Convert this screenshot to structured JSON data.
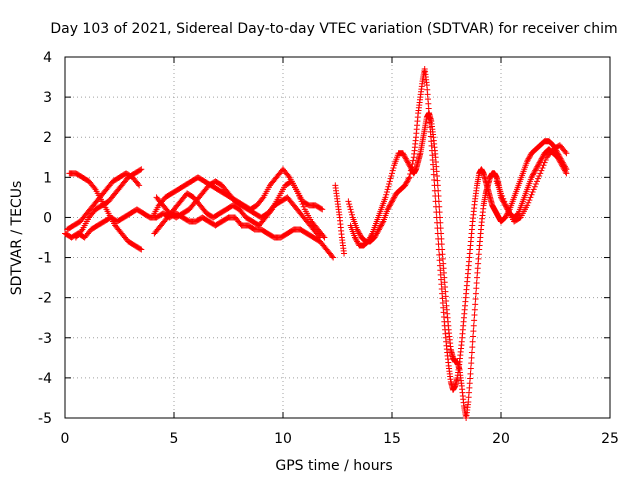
{
  "chart_data": {
    "type": "scatter",
    "title": "Day 103 of 2021, Sidereal Day-to-day VTEC variation (SDTVAR) for receiver chim",
    "xlabel": "GPS time / hours",
    "ylabel": "SDTVAR / TECUs",
    "xlim": [
      0,
      25
    ],
    "ylim": [
      -5,
      4
    ],
    "xticks": [
      "0",
      "5",
      "10",
      "15",
      "20",
      "25"
    ],
    "yticks": [
      "-5",
      "-4",
      "-3",
      "-2",
      "-1",
      "0",
      "1",
      "2",
      "3",
      "4"
    ],
    "grid": true,
    "marker": "+",
    "color": "#ff0000",
    "series": [
      {
        "x": [
          0.0,
          0.3,
          0.6,
          0.9,
          1.2,
          1.5,
          1.8,
          2.1,
          2.4,
          2.7,
          3.0,
          3.3,
          3.6,
          3.9,
          4.2,
          4.5,
          4.8,
          5.1,
          5.4,
          5.7,
          6.0,
          6.3,
          6.6,
          6.9,
          7.2,
          7.5,
          7.8,
          8.1,
          8.4,
          8.7,
          9.0,
          9.3,
          9.6,
          9.9,
          10.2,
          10.5,
          10.8,
          11.1,
          11.4,
          11.7,
          12.0,
          12.3
        ],
        "y": [
          -0.4,
          -0.5,
          -0.4,
          -0.5,
          -0.3,
          -0.2,
          -0.1,
          0.0,
          -0.1,
          0.0,
          0.1,
          0.2,
          0.1,
          0.0,
          0.0,
          0.1,
          0.0,
          0.1,
          0.0,
          -0.1,
          -0.1,
          0.0,
          -0.1,
          -0.2,
          -0.1,
          0.0,
          0.0,
          -0.2,
          -0.2,
          -0.3,
          -0.3,
          -0.4,
          -0.5,
          -0.5,
          -0.4,
          -0.3,
          -0.3,
          -0.4,
          -0.5,
          -0.6,
          -0.8,
          -1.0
        ]
      },
      {
        "x": [
          0.1,
          0.4,
          0.7,
          1.0,
          1.3,
          1.6,
          1.9,
          2.2,
          2.5,
          2.8,
          3.1,
          3.4
        ],
        "y": [
          -0.3,
          -0.2,
          -0.1,
          0.1,
          0.3,
          0.5,
          0.7,
          0.9,
          1.0,
          1.1,
          1.0,
          0.8
        ]
      },
      {
        "x": [
          0.2,
          0.5,
          0.8,
          1.1,
          1.4,
          1.7,
          2.0,
          2.3,
          2.6,
          2.9,
          3.2,
          3.5
        ],
        "y": [
          1.1,
          1.1,
          1.0,
          0.9,
          0.7,
          0.4,
          0.1,
          -0.2,
          -0.4,
          -0.6,
          -0.7,
          -0.8
        ]
      },
      {
        "x": [
          0.5,
          0.8,
          1.1,
          1.4,
          1.7,
          2.0,
          2.3,
          2.6,
          2.9,
          3.2,
          3.5
        ],
        "y": [
          -0.5,
          -0.3,
          0.0,
          0.2,
          0.3,
          0.4,
          0.6,
          0.8,
          1.0,
          1.1,
          1.2
        ]
      },
      {
        "x": [
          4.0,
          4.3,
          4.6,
          4.9,
          5.2,
          5.5,
          5.8,
          6.1,
          6.4,
          6.7,
          7.0,
          7.3,
          7.6,
          7.9,
          8.2,
          8.5,
          8.8,
          9.1,
          9.4,
          9.7,
          10.0,
          10.3,
          10.6,
          10.9,
          11.2,
          11.5,
          11.8
        ],
        "y": [
          0.0,
          0.3,
          0.5,
          0.6,
          0.7,
          0.8,
          0.9,
          1.0,
          0.9,
          0.8,
          0.7,
          0.6,
          0.5,
          0.4,
          0.3,
          0.2,
          0.3,
          0.5,
          0.8,
          1.0,
          1.2,
          1.0,
          0.7,
          0.4,
          0.3,
          0.3,
          0.2
        ]
      },
      {
        "x": [
          4.1,
          4.4,
          4.7,
          5.0,
          5.3,
          5.6,
          5.9,
          6.2,
          6.5,
          6.8,
          7.1,
          7.4,
          7.7,
          8.0,
          8.3,
          8.6,
          8.9,
          9.2,
          9.5,
          9.8,
          10.1,
          10.4,
          10.7,
          11.0,
          11.3,
          11.6,
          11.9
        ],
        "y": [
          -0.4,
          -0.2,
          0.0,
          0.2,
          0.4,
          0.6,
          0.5,
          0.3,
          0.1,
          0.0,
          0.1,
          0.2,
          0.3,
          0.2,
          0.0,
          -0.1,
          -0.2,
          0.0,
          0.2,
          0.5,
          0.8,
          0.9,
          0.6,
          0.2,
          -0.1,
          -0.3,
          -0.5
        ]
      },
      {
        "x": [
          4.2,
          4.5,
          4.8,
          5.1,
          5.4,
          5.7,
          6.0,
          6.3,
          6.6,
          6.9,
          7.2,
          7.5,
          7.8,
          8.1,
          8.4,
          8.7,
          9.0,
          9.3,
          9.6,
          9.9,
          10.2,
          10.5,
          10.8,
          11.1,
          11.4,
          11.7
        ],
        "y": [
          0.5,
          0.3,
          0.1,
          0.0,
          0.1,
          0.2,
          0.4,
          0.6,
          0.8,
          0.9,
          0.8,
          0.6,
          0.4,
          0.3,
          0.2,
          0.1,
          0.0,
          0.1,
          0.3,
          0.4,
          0.5,
          0.3,
          0.1,
          -0.1,
          -0.3,
          -0.5
        ]
      },
      {
        "x": [
          12.4,
          12.5,
          12.6,
          12.7,
          12.8
        ],
        "y": [
          0.8,
          0.4,
          0.0,
          -0.5,
          -0.9
        ]
      },
      {
        "x": [
          13.0,
          13.2,
          13.4,
          13.6,
          13.8,
          14.0,
          14.2,
          14.4,
          14.6,
          14.8,
          15.0,
          15.2,
          15.4,
          15.6,
          15.8,
          16.0,
          16.1,
          16.2,
          16.3,
          16.4,
          16.5,
          16.6,
          16.7,
          16.8,
          16.9,
          17.0,
          17.1,
          17.2,
          17.3,
          17.4,
          17.5,
          17.6,
          17.7,
          17.8,
          17.9,
          18.0,
          18.1,
          18.2,
          18.3,
          18.4,
          18.5,
          18.6,
          18.7,
          18.8,
          18.9,
          19.0,
          19.1,
          19.2,
          19.3,
          19.4,
          19.5,
          19.6,
          19.7,
          19.8,
          19.9,
          20.0,
          20.2,
          20.4,
          20.6,
          20.8,
          21.0,
          21.2,
          21.4,
          21.6,
          21.8,
          22.0,
          22.2,
          22.4,
          22.6,
          22.8,
          23.0
        ],
        "y": [
          0.4,
          0.0,
          -0.3,
          -0.5,
          -0.6,
          -0.6,
          -0.5,
          -0.3,
          -0.1,
          0.2,
          0.4,
          0.6,
          0.7,
          0.8,
          1.0,
          1.5,
          2.0,
          2.6,
          3.0,
          3.4,
          3.7,
          3.3,
          2.6,
          1.9,
          1.2,
          0.4,
          -0.4,
          -1.2,
          -1.9,
          -2.6,
          -3.2,
          -3.7,
          -4.1,
          -4.3,
          -4.2,
          -4.0,
          -3.6,
          -3.1,
          -2.5,
          -1.9,
          -1.3,
          -0.7,
          -0.1,
          0.4,
          0.8,
          1.1,
          1.2,
          1.1,
          0.9,
          0.7,
          0.5,
          0.3,
          0.2,
          0.1,
          0.0,
          -0.1,
          0.0,
          0.2,
          0.5,
          0.8,
          1.1,
          1.4,
          1.6,
          1.7,
          1.8,
          1.9,
          1.9,
          1.8,
          1.6,
          1.4,
          1.2
        ]
      },
      {
        "x": [
          13.1,
          13.3,
          13.5,
          13.7,
          13.9,
          14.1,
          14.3,
          14.5,
          14.7,
          14.9,
          15.1,
          15.3,
          15.5,
          15.7,
          15.9,
          16.0,
          16.1,
          16.2,
          16.3,
          16.4,
          16.5,
          16.6,
          16.7,
          16.8,
          16.9,
          17.0,
          17.1,
          17.2,
          17.3,
          17.4,
          17.5,
          17.6,
          17.7,
          17.8,
          17.9,
          18.0,
          18.1,
          18.2,
          18.3,
          18.4,
          18.5,
          18.6,
          18.7,
          18.8,
          18.9,
          19.0,
          19.1,
          19.2,
          19.3,
          19.4,
          19.5,
          19.6,
          19.7,
          19.8,
          19.9,
          20.0,
          20.2,
          20.4,
          20.6,
          20.8,
          21.0,
          21.2,
          21.4,
          21.6,
          21.8,
          22.0,
          22.2,
          22.4,
          22.6,
          22.8,
          23.0
        ],
        "y": [
          -0.2,
          -0.5,
          -0.7,
          -0.7,
          -0.6,
          -0.4,
          -0.1,
          0.2,
          0.5,
          0.9,
          1.3,
          1.6,
          1.6,
          1.4,
          1.2,
          1.1,
          1.2,
          1.4,
          1.6,
          1.9,
          2.2,
          2.5,
          2.6,
          2.4,
          2.0,
          1.5,
          0.8,
          0.0,
          -0.8,
          -1.5,
          -2.2,
          -2.8,
          -3.3,
          -3.5,
          -3.6,
          -3.6,
          -3.8,
          -4.2,
          -4.7,
          -5.0,
          -4.6,
          -3.9,
          -3.1,
          -2.3,
          -1.5,
          -0.8,
          -0.2,
          0.3,
          0.6,
          0.8,
          1.0,
          1.1,
          1.1,
          1.0,
          0.8,
          0.5,
          0.3,
          0.1,
          0.0,
          0.1,
          0.4,
          0.7,
          1.0,
          1.2,
          1.4,
          1.6,
          1.7,
          1.6,
          1.5,
          1.3,
          1.1
        ]
      },
      {
        "x": [
          19.8,
          20.0,
          20.3,
          20.6,
          20.9,
          21.2,
          21.5,
          21.8,
          22.1,
          22.4,
          22.7,
          23.0
        ],
        "y": [
          0.9,
          0.6,
          0.2,
          -0.1,
          0.0,
          0.3,
          0.7,
          1.1,
          1.5,
          1.7,
          1.8,
          1.6
        ]
      }
    ]
  }
}
